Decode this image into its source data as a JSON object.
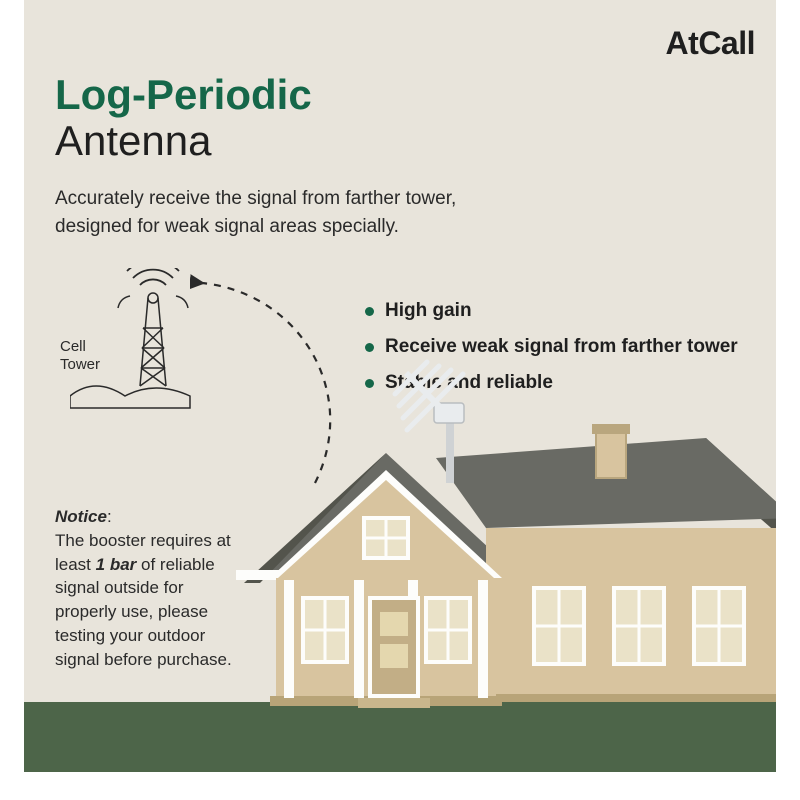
{
  "brand": "AtCall",
  "title": {
    "line1": "Log-Periodic",
    "line2": "Antenna"
  },
  "subtitle": "Accurately receive the signal from farther tower,\ndesigned for weak signal areas specially.",
  "celltower_label": "Cell\nTower",
  "features": [
    "High gain",
    "Receive weak signal from farther tower",
    "Stable and reliable"
  ],
  "notice": {
    "title": "Notice",
    "body_before": "The booster requires at least ",
    "strong": "1 bar",
    "body_after": " of reliable signal outside for properly use, please testing your outdoor signal before purchase."
  },
  "colors": {
    "brand_green": "#156749",
    "bg": "#e8e4db",
    "text": "#1f1f1f",
    "grass": "#4d6549",
    "roof": "#696a64",
    "wall": "#d8c49f",
    "trim": "#fdfdfb",
    "windowfill": "#eae2c8",
    "door": "#c2ae86",
    "shadow": "#53544c"
  },
  "structure_type": "infographic"
}
